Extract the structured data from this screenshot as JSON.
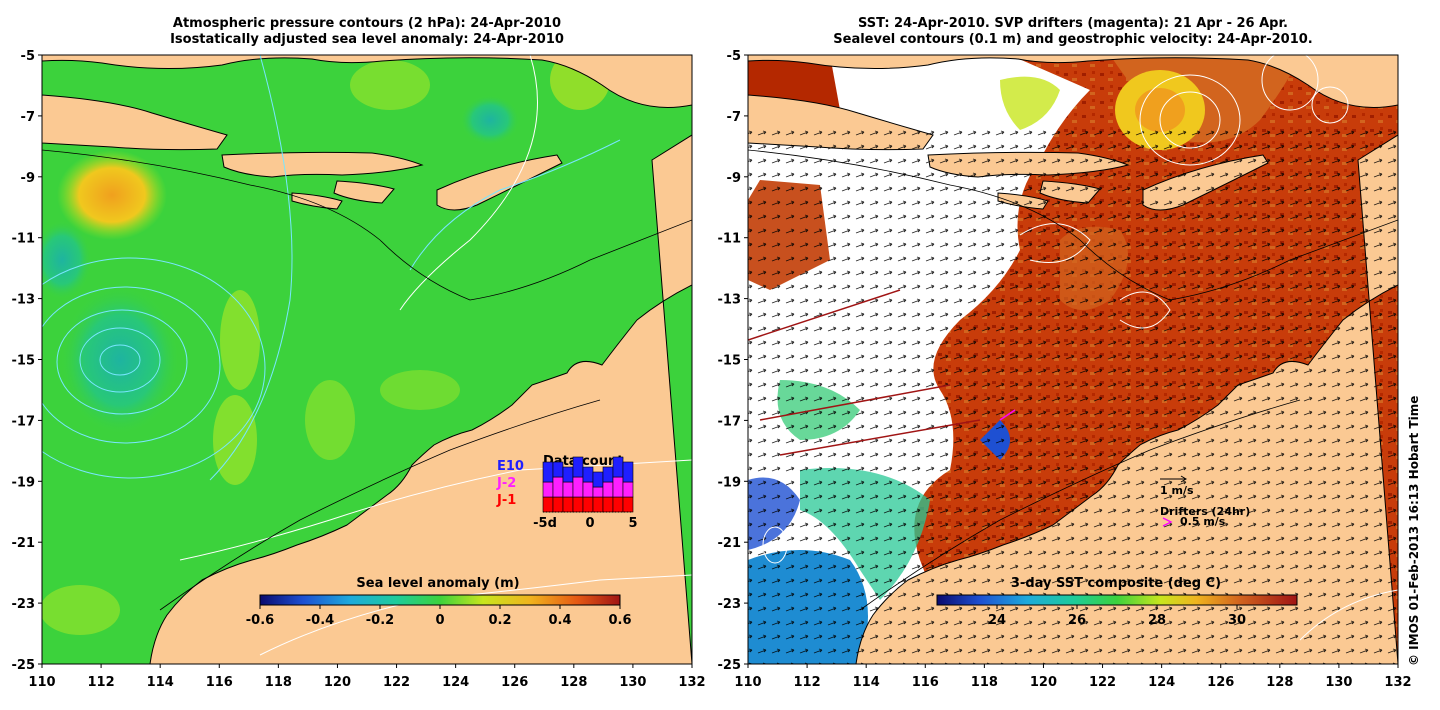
{
  "left_panel": {
    "title_line1": "Atmospheric pressure contours (2 hPa): 24-Apr-2010",
    "title_line2": "Isostatically adjusted sea level anomaly: 24-Apr-2010",
    "colorbar": {
      "label": "Sea level anomaly (m)",
      "ticks": [
        "-0.6",
        "-0.4",
        "-0.2",
        "0",
        "0.2",
        "0.4",
        "0.6"
      ],
      "range": [
        -0.6,
        0.6
      ]
    },
    "data_count": {
      "title": "Data count",
      "missions": [
        {
          "name": "E10",
          "color": "#1f1fff"
        },
        {
          "name": "J-2",
          "color": "#ff1fff"
        },
        {
          "name": "J-1",
          "color": "#ff0000"
        }
      ],
      "ticks": [
        "-5d",
        "0",
        "5"
      ],
      "bars": [
        {
          "j1": 3,
          "j2": 3,
          "e10": 4
        },
        {
          "j1": 3,
          "j2": 4,
          "e10": 3
        },
        {
          "j1": 3,
          "j2": 3,
          "e10": 3
        },
        {
          "j1": 3,
          "j2": 4,
          "e10": 4
        },
        {
          "j1": 3,
          "j2": 3,
          "e10": 3
        },
        {
          "j1": 3,
          "j2": 2,
          "e10": 3
        },
        {
          "j1": 3,
          "j2": 3,
          "e10": 3
        },
        {
          "j1": 3,
          "j2": 4,
          "e10": 4
        },
        {
          "j1": 3,
          "j2": 3,
          "e10": 4
        }
      ]
    }
  },
  "right_panel": {
    "title_line1": "SST: 24-Apr-2010. SVP drifters (magenta): 21 Apr - 26 Apr.",
    "title_line2": "Sealevel contours (0.1 m) and geostrophic velocity: 24-Apr-2010.",
    "colorbar": {
      "label": "3-day SST composite (deg C)",
      "ticks": [
        "24",
        "26",
        "28",
        "30"
      ],
      "range": [
        22.5,
        31.5
      ]
    },
    "velocity_legend": "1 m/s",
    "drifter_legend_title": "Drifters (24hr)",
    "drifter_legend_value": "0.5 m/s"
  },
  "axes": {
    "lat_ticks": [
      "-5",
      "-7",
      "-9",
      "-11",
      "-13",
      "-15",
      "-17",
      "-19",
      "-21",
      "-23",
      "-25"
    ],
    "lon_ticks": [
      "110",
      "112",
      "114",
      "116",
      "118",
      "120",
      "122",
      "124",
      "126",
      "128",
      "130",
      "132"
    ],
    "lat_range": [
      -25,
      -5
    ],
    "lon_range": [
      110,
      132
    ]
  },
  "credit": "© IMOS 01-Feb-2013 16:13 Hobart Time",
  "colors": {
    "land": "#fbc993",
    "sea_green": "#3cd23c",
    "sst_hot": "#b42800",
    "sst_mid": "#d2641e"
  }
}
